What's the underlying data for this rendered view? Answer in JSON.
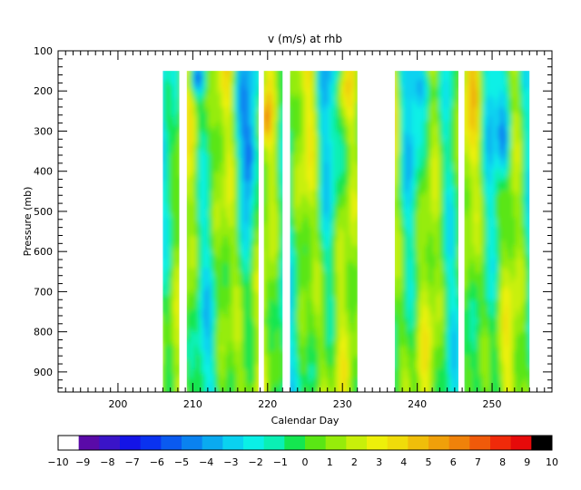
{
  "chart_data": {
    "type": "heatmap",
    "title": "v (m/s) at rhb",
    "xlabel": "Calendar Day",
    "ylabel": "Pressure (mb)",
    "xlim": [
      192,
      258
    ],
    "ylim": [
      950,
      100
    ],
    "x_ticks": [
      200,
      210,
      220,
      230,
      240,
      250
    ],
    "y_ticks": [
      100,
      200,
      300,
      400,
      500,
      600,
      700,
      800,
      900
    ],
    "data_top_pressure": 150,
    "data_segments": [
      {
        "start": 206.0,
        "end": 208.2
      },
      {
        "start": 209.2,
        "end": 218.8
      },
      {
        "start": 219.5,
        "end": 222.0
      },
      {
        "start": 223.0,
        "end": 232.0
      },
      {
        "start": 237.0,
        "end": 245.5
      },
      {
        "start": 246.3,
        "end": 255.0
      }
    ],
    "colorbar": {
      "ticks": [
        -10,
        -9,
        -8,
        -7,
        -6,
        -5,
        -4,
        -3,
        -2,
        -1,
        0,
        1,
        2,
        3,
        4,
        5,
        6,
        7,
        8,
        9,
        10
      ],
      "colors": [
        "#ffffff",
        "#5a0aa8",
        "#3a14c8",
        "#1414e6",
        "#0a32f0",
        "#0a5af0",
        "#0a82f0",
        "#0aaaf0",
        "#0ad2f0",
        "#0af0e6",
        "#0af0b4",
        "#14e650",
        "#5ae614",
        "#96ec0a",
        "#c8f00a",
        "#eef00a",
        "#f0dc0a",
        "#f0be0a",
        "#f0a00a",
        "#f0820a",
        "#f05a0a",
        "#f02a0a",
        "#e60a0a",
        "#000000"
      ]
    }
  }
}
